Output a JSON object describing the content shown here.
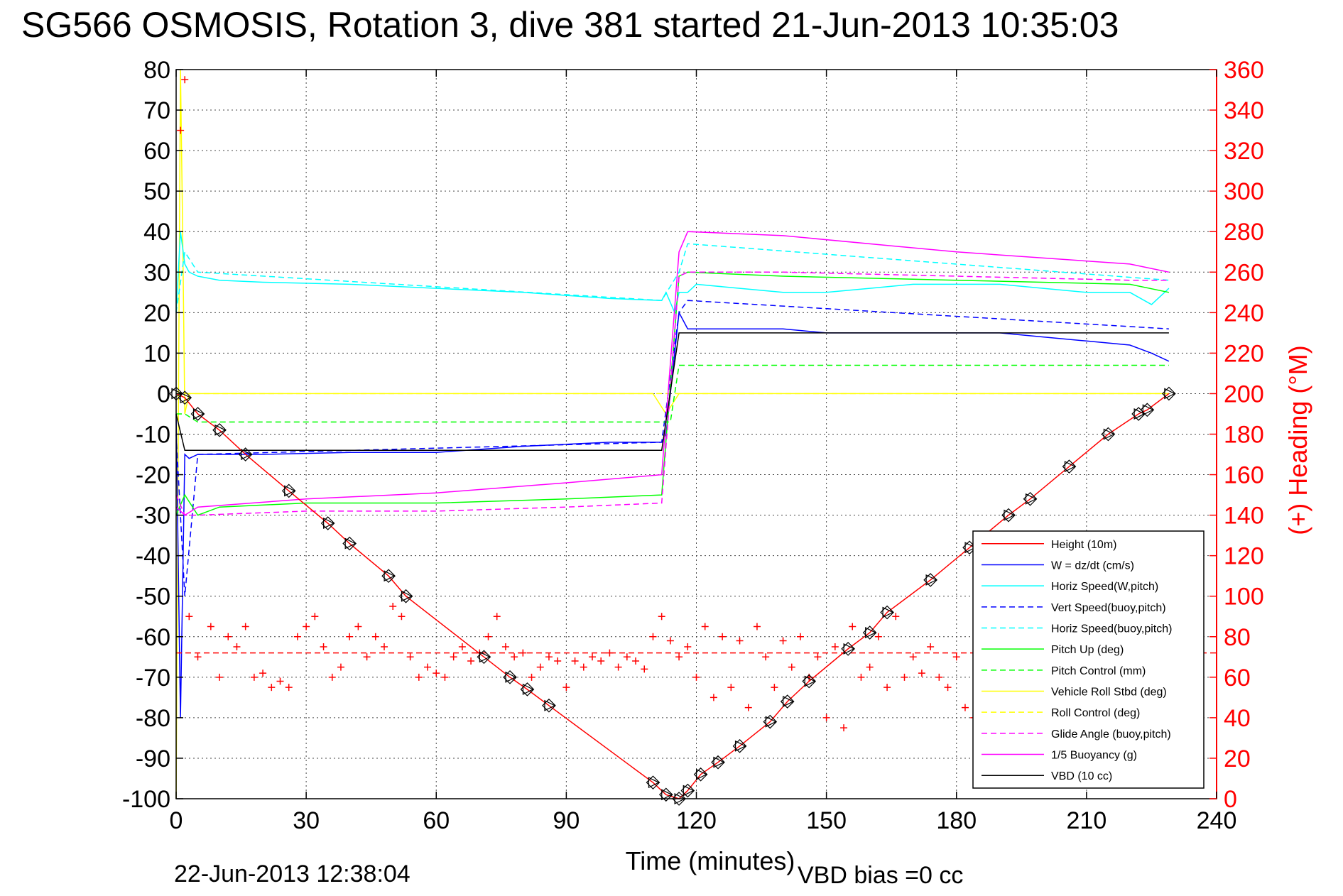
{
  "chart_data": {
    "type": "line",
    "title": "SG566 OSMOSIS, Rotation 3, dive 381 started 21-Jun-2013 10:35:03",
    "xlabel": "Time (minutes)",
    "ylabel_right": "(+) Heading (°M)",
    "xlim": [
      0,
      240
    ],
    "ylim": [
      -100,
      80
    ],
    "ylim_right": [
      0,
      360
    ],
    "x_ticks": [
      0,
      30,
      60,
      90,
      120,
      150,
      180,
      210,
      240
    ],
    "y_ticks": [
      80,
      70,
      60,
      50,
      40,
      30,
      20,
      10,
      0,
      -10,
      -20,
      -30,
      -40,
      -50,
      -60,
      -70,
      -80,
      -90,
      -100
    ],
    "y_ticks_right": [
      360,
      340,
      320,
      300,
      280,
      260,
      240,
      220,
      200,
      180,
      160,
      140,
      120,
      100,
      80,
      60,
      40,
      20,
      0
    ],
    "grid": true,
    "legend_position": "bottom-right",
    "footer_left": "22-Jun-2013 12:38:04",
    "footer_right": "VBD bias =0 cc",
    "colors": {
      "height": "#ff0000",
      "w": "#0000ff",
      "horiz_w": "#00ffff",
      "vert_buoy": "#0000ff",
      "horiz_buoy": "#00ffff",
      "pitch": "#00ff00",
      "pitch_ctrl": "#00ff00",
      "roll": "#ffff00",
      "roll_ctrl": "#ffff00",
      "glide": "#ff00ff",
      "buoyancy": "#ff00ff",
      "vbd": "#000000",
      "heading": "#ff0000"
    },
    "series": [
      {
        "name": "Height (10m)",
        "color": "#ff0000",
        "dash": false,
        "x": [
          0,
          2,
          5,
          10,
          16,
          26,
          35,
          40,
          49,
          53,
          71,
          77,
          81,
          86,
          110,
          113,
          116,
          118,
          121,
          125,
          130,
          137,
          141,
          146,
          155,
          160,
          164,
          174,
          183,
          192,
          197,
          206,
          215,
          222,
          224,
          229
        ],
        "y": [
          0,
          -1,
          -5,
          -9,
          -15,
          -24,
          -32,
          -37,
          -45,
          -50,
          -65,
          -70,
          -73,
          -77,
          -96,
          -99,
          -100,
          -98,
          -94,
          -91,
          -87,
          -81,
          -76,
          -71,
          -63,
          -59,
          -54,
          -46,
          -38,
          -30,
          -26,
          -18,
          -10,
          -5,
          -4,
          0
        ]
      },
      {
        "name": "W = dz/dt (cm/s)",
        "color": "#0000ff",
        "dash": false,
        "x": [
          0,
          1,
          2,
          3,
          5,
          10,
          20,
          40,
          60,
          80,
          100,
          112,
          113,
          115,
          116,
          118,
          120,
          130,
          140,
          150,
          160,
          170,
          180,
          190,
          200,
          210,
          220,
          225,
          229
        ],
        "y": [
          -5,
          -80,
          -15,
          -16,
          -15,
          -15,
          -15,
          -14.5,
          -14.5,
          -13,
          -12,
          -12,
          -10,
          10,
          20,
          16,
          16,
          16,
          16,
          15,
          15,
          15,
          15,
          15,
          14,
          13,
          12,
          10,
          8
        ]
      },
      {
        "name": "Horiz Speed(W,pitch)",
        "color": "#00ffff",
        "dash": false,
        "x": [
          0,
          1,
          2,
          3,
          5,
          10,
          20,
          40,
          60,
          80,
          100,
          112,
          113,
          115,
          116,
          118,
          120,
          130,
          140,
          150,
          160,
          170,
          180,
          190,
          200,
          210,
          220,
          225,
          229
        ],
        "y": [
          20,
          40,
          32,
          30,
          29,
          28,
          27.5,
          27,
          26,
          25,
          23.5,
          23,
          25,
          20,
          25,
          25,
          27,
          26,
          25,
          25,
          26,
          27,
          27,
          27,
          26,
          25,
          25,
          22,
          26
        ]
      },
      {
        "name": "Vert Speed(buoy,pitch)",
        "color": "#0000ff",
        "dash": true,
        "x": [
          0,
          2,
          5,
          112,
          116,
          118,
          229
        ],
        "y": [
          -10,
          -50,
          -15,
          -12,
          20,
          23,
          16
        ]
      },
      {
        "name": "Horiz Speed(buoy,pitch)",
        "color": "#00ffff",
        "dash": true,
        "x": [
          0,
          2,
          5,
          112,
          116,
          118,
          229
        ],
        "y": [
          20,
          35,
          30,
          23,
          30,
          37,
          28
        ]
      },
      {
        "name": "Pitch Up (deg)",
        "color": "#00ff00",
        "dash": false,
        "x": [
          0,
          2,
          5,
          10,
          30,
          60,
          90,
          112,
          116,
          118,
          140,
          180,
          220,
          229
        ],
        "y": [
          -30,
          -25,
          -30,
          -28,
          -27,
          -27,
          -26,
          -25,
          29,
          30,
          29,
          28,
          27,
          25
        ]
      },
      {
        "name": "Pitch Control (mm)",
        "color": "#00ff00",
        "dash": true,
        "x": [
          0,
          2,
          5,
          112,
          114,
          116,
          118,
          229
        ],
        "y": [
          -5,
          -5,
          -7,
          -7,
          -7,
          7,
          7,
          7
        ]
      },
      {
        "name": "Vehicle Roll Stbd (deg)",
        "color": "#ffff00",
        "dash": false,
        "x": [
          0,
          1,
          1.5,
          2,
          3,
          5,
          110,
          113,
          116,
          118,
          229
        ],
        "y": [
          -100,
          80,
          40,
          -5,
          0,
          0,
          0,
          -5,
          0,
          0,
          0
        ]
      },
      {
        "name": "Roll Control (deg)",
        "color": "#ffff00",
        "dash": true,
        "x": [
          0,
          112,
          116,
          229
        ],
        "y": [
          0,
          0,
          0,
          0
        ]
      },
      {
        "name": "Glide Angle (buoy,pitch)",
        "color": "#ff00ff",
        "dash": true,
        "x": [
          0,
          2,
          5,
          30,
          60,
          90,
          112,
          116,
          118,
          140,
          180,
          220,
          229
        ],
        "y": [
          -25,
          -30,
          -30,
          -29,
          -29,
          -28,
          -27,
          29,
          30,
          30,
          29,
          28,
          28
        ]
      },
      {
        "name": "1/5 Buoyancy (g)",
        "color": "#ff00ff",
        "dash": false,
        "x": [
          0,
          2,
          5,
          30,
          60,
          90,
          112,
          116,
          118,
          140,
          180,
          220,
          229
        ],
        "y": [
          -28,
          -30,
          -28,
          -26,
          -24.5,
          -22,
          -20,
          35,
          40,
          39,
          35,
          32,
          30
        ]
      },
      {
        "name": "VBD (10 cc)",
        "color": "#000000",
        "dash": false,
        "x": [
          0,
          2,
          5,
          112,
          116,
          118,
          229
        ],
        "y": [
          -5,
          -14,
          -14,
          -14,
          15,
          15,
          15
        ]
      }
    ],
    "heading": {
      "name": "Heading (°M)",
      "color": "#ff0000",
      "axis": "right",
      "marker": "+",
      "mean": 72,
      "x": [
        1,
        2,
        3,
        5,
        8,
        10,
        12,
        14,
        16,
        18,
        20,
        22,
        24,
        26,
        28,
        30,
        32,
        34,
        36,
        38,
        40,
        42,
        44,
        46,
        48,
        50,
        52,
        54,
        56,
        58,
        60,
        62,
        64,
        66,
        68,
        70,
        72,
        74,
        76,
        78,
        80,
        82,
        84,
        86,
        88,
        90,
        92,
        94,
        96,
        98,
        100,
        102,
        104,
        106,
        108,
        110,
        112,
        114,
        116,
        118,
        120,
        122,
        124,
        126,
        128,
        130,
        132,
        134,
        136,
        138,
        140,
        142,
        144,
        146,
        148,
        150,
        152,
        154,
        156,
        158,
        160,
        162,
        164,
        166,
        168,
        170,
        172,
        174,
        176,
        178,
        180,
        182,
        184
      ],
      "y": [
        330,
        355,
        90,
        70,
        85,
        60,
        80,
        75,
        85,
        60,
        62,
        55,
        58,
        55,
        80,
        85,
        90,
        75,
        60,
        65,
        80,
        85,
        70,
        80,
        75,
        95,
        90,
        70,
        60,
        65,
        62,
        60,
        70,
        75,
        68,
        72,
        80,
        90,
        75,
        70,
        72,
        60,
        65,
        70,
        68,
        55,
        68,
        65,
        70,
        68,
        72,
        65,
        70,
        68,
        64,
        80,
        90,
        78,
        70,
        75,
        60,
        85,
        50,
        80,
        55,
        78,
        45,
        85,
        70,
        55,
        78,
        65,
        80,
        60,
        70,
        40,
        75,
        35,
        85,
        60,
        65,
        80,
        55,
        90,
        60,
        70,
        62,
        75,
        60,
        55,
        70,
        45,
        40
      ]
    }
  }
}
